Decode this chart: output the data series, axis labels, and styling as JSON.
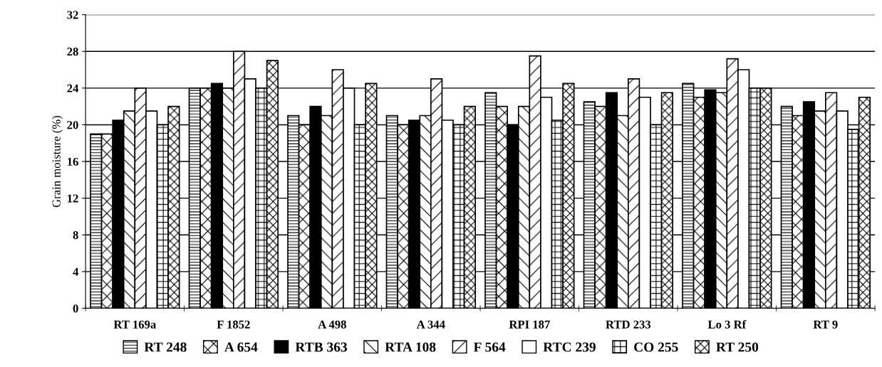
{
  "chart_data": {
    "type": "bar",
    "ylabel": "Grain moisture (%)",
    "categories": [
      "RT 169a",
      "F 1852",
      "A 498",
      "A 344",
      "RPI 187",
      "RTD 233",
      "Lo 3 Rf",
      "RT 9"
    ],
    "series": [
      {
        "name": "RT 248",
        "color": "#000000",
        "values": [
          19,
          24,
          21,
          21,
          23.5,
          22.5,
          24.5,
          22
        ]
      },
      {
        "name": "A 654",
        "color": "#000000",
        "values": [
          19,
          24,
          20,
          20,
          22,
          22,
          23,
          21
        ]
      },
      {
        "name": "RTB 363",
        "color": "#000000",
        "values": [
          20.5,
          24.5,
          22,
          20.5,
          20,
          23.5,
          23.8,
          22.5
        ]
      },
      {
        "name": "RTA 108",
        "color": "#000000",
        "values": [
          21.5,
          24,
          21,
          21,
          22,
          21,
          23.5,
          21.5
        ]
      },
      {
        "name": "F 564",
        "color": "#000000",
        "values": [
          24,
          28,
          26,
          25,
          27.5,
          25,
          27.2,
          23.5
        ]
      },
      {
        "name": "RTC 239",
        "color": "#000000",
        "values": [
          21.5,
          25,
          24,
          20.5,
          23,
          23,
          26,
          21.5
        ]
      },
      {
        "name": "CO 255",
        "color": "#000000",
        "values": [
          20,
          24,
          20,
          20,
          20.5,
          20,
          24,
          19.5
        ]
      },
      {
        "name": "RT 250",
        "color": "#000000",
        "values": [
          22,
          27,
          24.5,
          22,
          24.5,
          23.5,
          24,
          23
        ]
      }
    ],
    "ylim": [
      0,
      32
    ],
    "yticks": [
      0,
      4,
      8,
      12,
      16,
      20,
      24,
      28,
      32
    ],
    "grid": "y",
    "legend": "bottom"
  }
}
